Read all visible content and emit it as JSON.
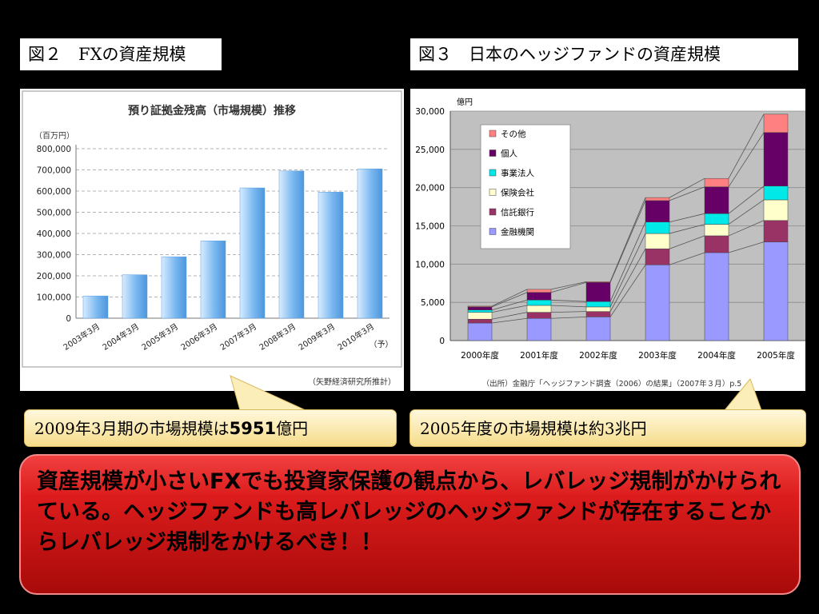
{
  "fig2": {
    "caption": "図２　FXの資産規模",
    "chart_title": "預り証拠金残高（市場規模）推移",
    "unit": "（百万円）",
    "source": "（矢野経済研究所推計）",
    "y_ticks": [
      "800,000",
      "700,000",
      "600,000",
      "500,000",
      "400,000",
      "300,000",
      "200,000",
      "100,000",
      "0"
    ]
  },
  "fig3": {
    "caption": "図３　日本のヘッジファンドの資産規模",
    "unit": "億円",
    "source": "（出所）金融庁「ヘッジファンド調査（2006）の結果」（2007年３月）p.5",
    "y_ticks": [
      "30,000",
      "25,000",
      "20,000",
      "15,000",
      "10,000",
      "5,000",
      "0"
    ]
  },
  "chart_data": [
    {
      "type": "bar",
      "title": "預り証拠金残高（市場規模）推移",
      "ylabel": "（百万円）",
      "categories": [
        "2003年3月",
        "2004年3月",
        "2005年3月",
        "2006年3月",
        "2007年3月",
        "2008年3月",
        "2009年3月",
        "2010年3月（予）"
      ],
      "values": [
        105000,
        205000,
        290000,
        365000,
        615000,
        695000,
        595000,
        705000
      ],
      "ylim": [
        0,
        800000
      ],
      "grid": true
    },
    {
      "type": "bar",
      "stacked": true,
      "ylabel": "億円",
      "categories": [
        "2000年度",
        "2001年度",
        "2002年度",
        "2003年度",
        "2004年度",
        "2005年度"
      ],
      "ylim": [
        0,
        30000
      ],
      "legend_position": "top-left",
      "series": [
        {
          "name": "金融機関",
          "color": "#9999ff",
          "values": [
            2300,
            2900,
            3100,
            9900,
            11500,
            12900
          ]
        },
        {
          "name": "信託銀行",
          "color": "#993366",
          "values": [
            500,
            800,
            700,
            2100,
            2200,
            2800
          ]
        },
        {
          "name": "保険会社",
          "color": "#ffffcc",
          "values": [
            900,
            900,
            600,
            2000,
            1500,
            2700
          ]
        },
        {
          "name": "事業法人",
          "color": "#00e8e8",
          "values": [
            300,
            700,
            700,
            1500,
            1400,
            1800
          ]
        },
        {
          "name": "個人",
          "color": "#660066",
          "values": [
            400,
            1000,
            2500,
            2800,
            3500,
            7000
          ]
        },
        {
          "name": "その他",
          "color": "#ff8080",
          "values": [
            100,
            400,
            100,
            400,
            1100,
            2400
          ]
        }
      ]
    }
  ],
  "callout1": {
    "text_before": "2009年3月期の市場規模は",
    "number": "5951",
    "text_after": "億円"
  },
  "callout2": {
    "text": "2005年度の市場規模は約3兆円"
  },
  "banner": {
    "text": "資産規模が小さいFXでも投資家保護の観点から、レバレッジ規制がかけられている。ヘッジファンドも高レバレッジのヘッジファンドが存在することからレバレッジ規制をかけるべき！！"
  },
  "colors": {
    "banner_red": "#dc1c1c",
    "callout_fill": "#f6dc8a",
    "fig2_bar": "#7ab8f0",
    "fig3_plot_bg": "#c0c0c0"
  }
}
